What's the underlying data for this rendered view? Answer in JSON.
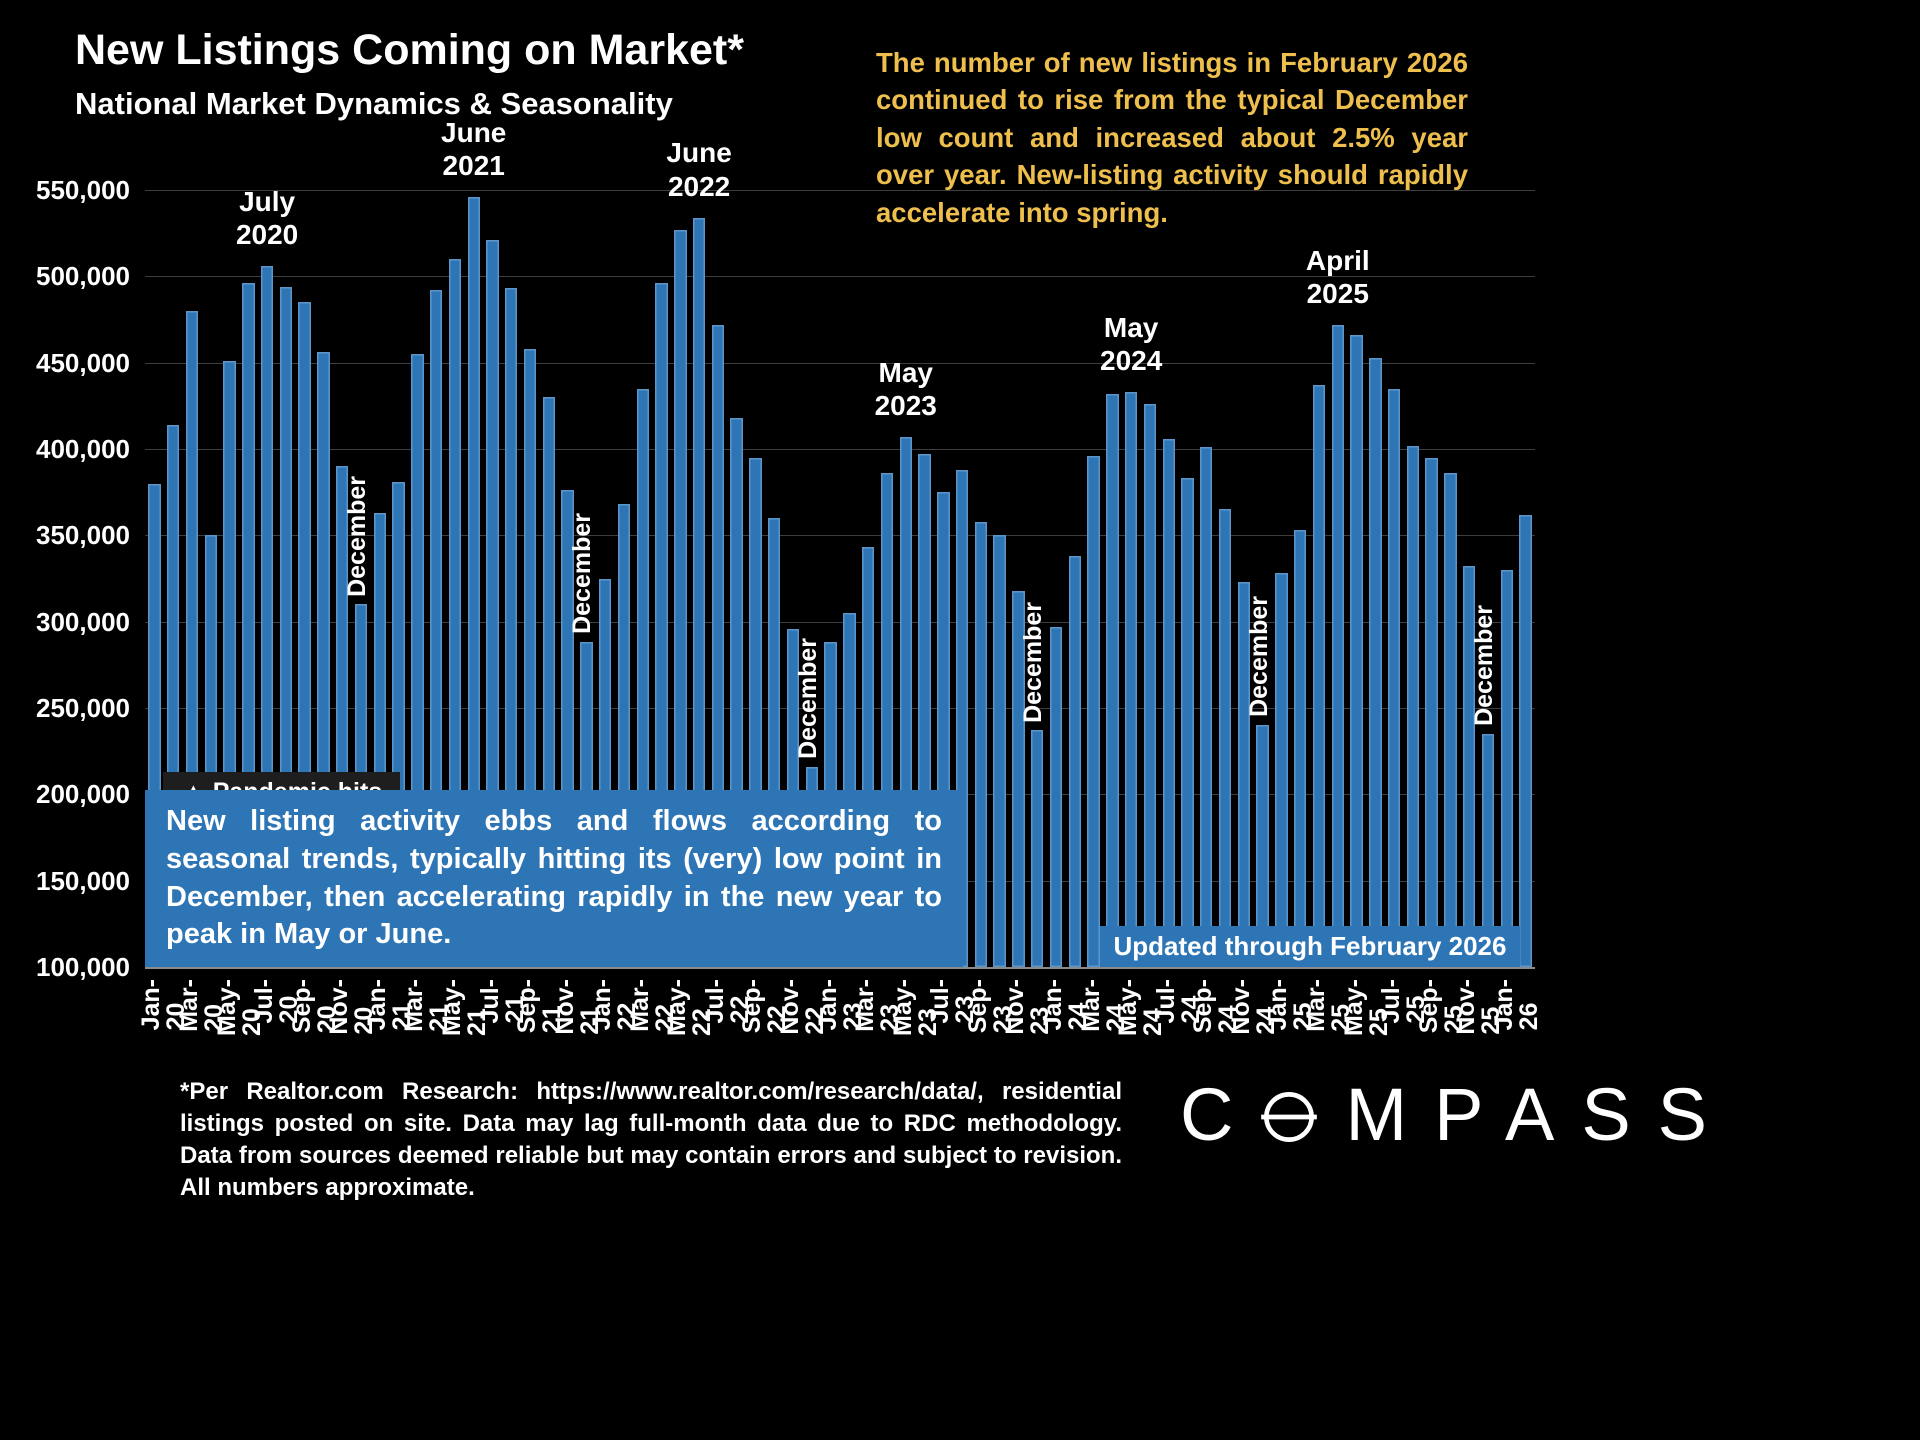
{
  "title": "New Listings Coming on Market*",
  "subtitle": "National Market Dynamics & Seasonality",
  "commentary": "The number of new listings in February 2026 continued to rise from the typical December low count and increased about 2.5% year over year. New-listing activity should rapidly accelerate into spring.",
  "pandemic_label": "▲ Pandemic hits",
  "callout": "New listing activity ebbs and flows according to seasonal trends, typically hitting its (very) low point in December, then accelerating rapidly in the new year to peak in May or June.",
  "updated_label": "Updated through February 2026",
  "footnote": "*Per Realtor.com Research: https://www.realtor.com/research/data/, residential listings posted on site. Data may lag full-month data due to RDC methodology. Data from sources deemed reliable but may contain errors and subject to revision. All numbers approximate.",
  "logo": {
    "pre": "C",
    "post": "MPASS"
  },
  "colors": {
    "background": "#000000",
    "bar": "#2E75B6",
    "bar_edge": "#5C96C9",
    "accent_yellow": "#EEBF4D",
    "gridline": "#3E3E3E",
    "text": "#FFFFFF"
  },
  "chart_data": {
    "type": "bar",
    "title": "New Listings Coming on Market*",
    "xlabel": "",
    "ylabel": "",
    "ylim": [
      100000,
      550000
    ],
    "grid": true,
    "legend": "none",
    "ytick_values": [
      550000,
      500000,
      450000,
      400000,
      350000,
      300000,
      250000,
      200000,
      150000,
      100000
    ],
    "ytick_labels": [
      "550,000",
      "500,000",
      "450,000",
      "400,000",
      "350,000",
      "300,000",
      "250,000",
      "200,000",
      "150,000",
      "100,000"
    ],
    "xtick_every": 2,
    "x": [
      "Jan-20",
      "Feb-20",
      "Mar-20",
      "Apr-20",
      "May-20",
      "Jun-20",
      "Jul-20",
      "Aug-20",
      "Sep-20",
      "Oct-20",
      "Nov-20",
      "Dec-20",
      "Jan-21",
      "Feb-21",
      "Mar-21",
      "Apr-21",
      "May-21",
      "Jun-21",
      "Jul-21",
      "Aug-21",
      "Sep-21",
      "Oct-21",
      "Nov-21",
      "Dec-21",
      "Jan-22",
      "Feb-22",
      "Mar-22",
      "Apr-22",
      "May-22",
      "Jun-22",
      "Jul-22",
      "Aug-22",
      "Sep-22",
      "Oct-22",
      "Nov-22",
      "Dec-22",
      "Jan-23",
      "Feb-23",
      "Mar-23",
      "Apr-23",
      "May-23",
      "Jun-23",
      "Jul-23",
      "Aug-23",
      "Sep-23",
      "Oct-23",
      "Nov-23",
      "Dec-23",
      "Jan-24",
      "Feb-24",
      "Mar-24",
      "Apr-24",
      "May-24",
      "Jun-24",
      "Jul-24",
      "Aug-24",
      "Sep-24",
      "Oct-24",
      "Nov-24",
      "Dec-24",
      "Jan-25",
      "Feb-25",
      "Mar-25",
      "Apr-25",
      "May-25",
      "Jun-25",
      "Jul-25",
      "Aug-25",
      "Sep-25",
      "Oct-25",
      "Nov-25",
      "Dec-25",
      "Jan-26",
      "Feb-26"
    ],
    "values": [
      380000,
      414000,
      480000,
      350000,
      451000,
      496000,
      506000,
      494000,
      485000,
      456000,
      390000,
      310000,
      363000,
      381000,
      455000,
      492000,
      510000,
      546000,
      521000,
      493000,
      458000,
      430000,
      376000,
      288000,
      325000,
      368000,
      435000,
      496000,
      527000,
      534000,
      472000,
      418000,
      395000,
      360000,
      296000,
      216000,
      288000,
      305000,
      343000,
      386000,
      407000,
      397000,
      375000,
      388000,
      358000,
      350000,
      318000,
      237000,
      297000,
      338000,
      396000,
      432000,
      433000,
      426000,
      406000,
      383000,
      401000,
      365000,
      323000,
      240000,
      328000,
      353000,
      437000,
      472000,
      466000,
      453000,
      435000,
      402000,
      395000,
      386000,
      332000,
      235000,
      330000,
      362000
    ],
    "peak_annotations": [
      {
        "index": 6,
        "lines": [
          "July",
          "2020"
        ]
      },
      {
        "index": 17,
        "lines": [
          "June",
          "2021"
        ]
      },
      {
        "index": 29,
        "lines": [
          "June",
          "2022"
        ]
      },
      {
        "index": 40,
        "lines": [
          "May",
          "2023"
        ]
      },
      {
        "index": 52,
        "lines": [
          "May",
          "2024"
        ]
      },
      {
        "index": 63,
        "lines": [
          "April",
          "2025"
        ]
      }
    ],
    "december_label": "December",
    "december_indices": [
      11,
      23,
      35,
      47,
      59,
      71
    ]
  }
}
